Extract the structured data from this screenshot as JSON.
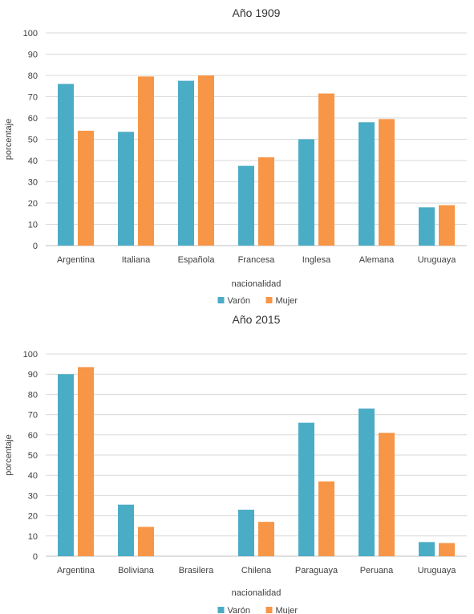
{
  "colors": {
    "varon": "#4bacc6",
    "mujer": "#f79646",
    "grid": "#d9d9d9",
    "axis": "#bfbfbf"
  },
  "chart_data": [
    {
      "type": "bar",
      "title": "Año 1909",
      "xlabel": "nacionalidad",
      "ylabel": "porcentaje",
      "ylim": [
        0,
        100
      ],
      "yticks": [
        0,
        10,
        20,
        30,
        40,
        50,
        60,
        70,
        80,
        90,
        100
      ],
      "categories": [
        "Argentina",
        "Italiana",
        "Española",
        "Francesa",
        "Inglesa",
        "Alemana",
        "Uruguaya"
      ],
      "series": [
        {
          "name": "Varón",
          "values": [
            76,
            53.5,
            77.5,
            37.5,
            50,
            58,
            18
          ]
        },
        {
          "name": "Mujer",
          "values": [
            54,
            79.5,
            80,
            41.5,
            71.5,
            59.5,
            19
          ]
        }
      ],
      "grid": true,
      "legend": "bottom"
    },
    {
      "type": "bar",
      "title": "Año 2015",
      "xlabel": "nacionalidad",
      "ylabel": "porcentaje",
      "ylim": [
        0,
        100
      ],
      "yticks": [
        0,
        10,
        20,
        30,
        40,
        50,
        60,
        70,
        80,
        90,
        100
      ],
      "categories": [
        "Argentina",
        "Boliviana",
        "Brasilera",
        "Chilena",
        "Paraguaya",
        "Peruana",
        "Uruguaya"
      ],
      "series": [
        {
          "name": "Varón",
          "values": [
            90,
            25.5,
            0,
            23,
            66,
            73,
            7
          ]
        },
        {
          "name": "Mujer",
          "values": [
            93.5,
            14.5,
            0,
            17,
            37,
            61,
            6.5
          ]
        }
      ],
      "grid": true,
      "legend": "bottom"
    }
  ]
}
